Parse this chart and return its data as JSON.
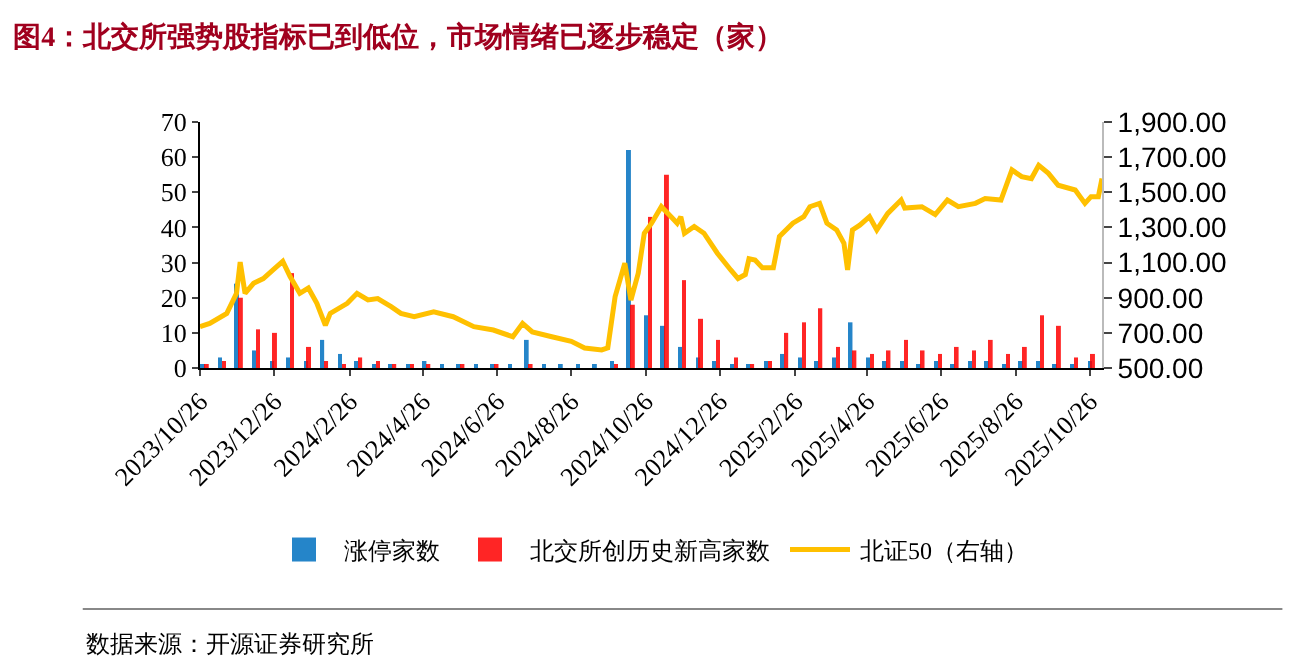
{
  "chart_data": {
    "type": "bar",
    "title": "图4：北交所强势股指标已到低位，市场情绪已逐步稳定（家）",
    "x": [
      "2023-10-27",
      "2023-11-10",
      "2023-11-24",
      "2023-12-08",
      "2023-12-22",
      "2024-01-05",
      "2024-01-19",
      "2024-02-02",
      "2024-02-16",
      "2024-03-01",
      "2024-03-15",
      "2024-03-29",
      "2024-04-12",
      "2024-04-26",
      "2024-05-10",
      "2024-05-24",
      "2024-06-07",
      "2024-06-21",
      "2024-07-05",
      "2024-07-19",
      "2024-08-02",
      "2024-08-16",
      "2024-08-30",
      "2024-09-13",
      "2024-09-27",
      "2024-10-11",
      "2024-10-25",
      "2024-11-08",
      "2024-11-22",
      "2024-12-06",
      "2024-12-20",
      "2025-01-03",
      "2025-01-17",
      "2025-01-31",
      "2025-02-14",
      "2025-02-28",
      "2025-03-14",
      "2025-03-28",
      "2025-04-11",
      "2025-04-25",
      "2025-05-09",
      "2025-05-23",
      "2025-06-06",
      "2025-06-20",
      "2025-07-04",
      "2025-07-18",
      "2025-08-01",
      "2025-08-15",
      "2025-08-29",
      "2025-09-12",
      "2025-09-26",
      "2025-10-10",
      "2025-10-24"
    ],
    "series": [
      {
        "name": "涨停家数",
        "color": "#0070c0",
        "values": [
          1,
          3,
          24,
          5,
          2,
          3,
          2,
          8,
          4,
          2,
          1,
          1,
          1,
          2,
          1,
          1,
          1,
          1,
          1,
          8,
          1,
          1,
          1,
          1,
          2,
          62,
          15,
          12,
          6,
          3,
          2,
          1,
          1,
          2,
          4,
          3,
          2,
          3,
          13,
          3,
          2,
          2,
          1,
          2,
          1,
          2,
          2,
          1,
          2,
          2,
          1,
          1,
          2
        ]
      },
      {
        "name": "北交所创历史新高家数",
        "color": "#ff0000",
        "values": [
          1,
          2,
          20,
          11,
          10,
          27,
          6,
          2,
          1,
          3,
          2,
          1,
          1,
          1,
          0,
          1,
          0,
          1,
          0,
          1,
          0,
          0,
          0,
          0,
          1,
          18,
          43,
          55,
          25,
          14,
          8,
          3,
          1,
          2,
          10,
          13,
          17,
          6,
          5,
          4,
          5,
          8,
          5,
          4,
          6,
          5,
          8,
          4,
          6,
          15,
          12,
          3,
          4
        ]
      },
      {
        "name": "北证50（右轴）",
        "type": "line",
        "axis": "y2",
        "color": "#ffc000",
        "x": [
          "2023-10-26",
          "2023-11-03",
          "2023-11-17",
          "2023-11-25",
          "2023-11-28",
          "2023-12-02",
          "2023-12-09",
          "2023-12-17",
          "2023-12-25",
          "2024-01-02",
          "2024-01-08",
          "2024-01-16",
          "2024-01-23",
          "2024-01-30",
          "2024-02-06",
          "2024-02-10",
          "2024-02-24",
          "2024-03-03",
          "2024-03-12",
          "2024-03-20",
          "2024-03-31",
          "2024-04-08",
          "2024-04-19",
          "2024-05-05",
          "2024-05-21",
          "2024-06-07",
          "2024-06-23",
          "2024-07-09",
          "2024-07-17",
          "2024-07-25",
          "2024-08-10",
          "2024-08-26",
          "2024-09-06",
          "2024-09-20",
          "2024-09-25",
          "2024-10-01",
          "2024-10-09",
          "2024-10-14",
          "2024-10-20",
          "2024-10-25",
          "2024-10-31",
          "2024-11-08",
          "2024-11-16",
          "2024-11-21",
          "2024-11-24",
          "2024-11-27",
          "2024-12-05",
          "2024-12-13",
          "2024-12-24",
          "2025-01-04",
          "2025-01-10",
          "2025-01-16",
          "2025-01-19",
          "2025-01-24",
          "2025-01-30",
          "2025-02-08",
          "2025-02-13",
          "2025-02-24",
          "2025-03-05",
          "2025-03-10",
          "2025-03-18",
          "2025-03-24",
          "2025-04-01",
          "2025-04-07",
          "2025-04-10",
          "2025-04-14",
          "2025-04-20",
          "2025-04-28",
          "2025-05-04",
          "2025-05-13",
          "2025-05-24",
          "2025-05-27",
          "2025-06-10",
          "2025-06-21",
          "2025-07-01",
          "2025-07-10",
          "2025-07-24",
          "2025-08-01",
          "2025-08-14",
          "2025-08-23",
          "2025-08-31",
          "2025-09-08",
          "2025-09-14",
          "2025-09-22",
          "2025-09-30",
          "2025-10-14",
          "2025-10-22",
          "2025-10-27",
          "2025-11-02",
          "2025-11-05"
        ],
        "values": [
          735,
          754,
          811,
          925,
          1103,
          925,
          982,
          1009,
          1058,
          1107,
          1020,
          925,
          955,
          868,
          743,
          811,
          868,
          925,
          887,
          895,
          849,
          811,
          792,
          819,
          792,
          735,
          716,
          678,
          754,
          705,
          678,
          652,
          614,
          603,
          614,
          906,
          1096,
          887,
          1039,
          1267,
          1324,
          1418,
          1361,
          1324,
          1361,
          1267,
          1305,
          1267,
          1153,
          1058,
          1009,
          1032,
          1122,
          1115,
          1070,
          1070,
          1248,
          1324,
          1361,
          1418,
          1437,
          1324,
          1286,
          1210,
          1058,
          1286,
          1313,
          1361,
          1286,
          1380,
          1456,
          1410,
          1418,
          1373,
          1456,
          1418,
          1437,
          1464,
          1456,
          1627,
          1589,
          1578,
          1653,
          1608,
          1540,
          1513,
          1437,
          1475,
          1475,
          1578
        ]
      }
    ],
    "xlim": [
      "2023-10-26",
      "2025-11-05"
    ],
    "xticks": [
      {
        "value": "2023-10-26",
        "label": "2023/10/26"
      },
      {
        "value": "2023-12-26",
        "label": "2023/12/26"
      },
      {
        "value": "2024-02-26",
        "label": "2024/2/26"
      },
      {
        "value": "2024-04-26",
        "label": "2024/4/26"
      },
      {
        "value": "2024-06-26",
        "label": "2024/6/26"
      },
      {
        "value": "2024-08-26",
        "label": "2024/8/26"
      },
      {
        "value": "2024-10-26",
        "label": "2024/10/26"
      },
      {
        "value": "2024-12-26",
        "label": "2024/12/26"
      },
      {
        "value": "2025-02-26",
        "label": "2025/2/26"
      },
      {
        "value": "2025-04-26",
        "label": "2025/4/26"
      },
      {
        "value": "2025-06-26",
        "label": "2025/6/26"
      },
      {
        "value": "2025-08-26",
        "label": "2025/8/26"
      },
      {
        "value": "2025-10-26",
        "label": "2025/10/26"
      }
    ],
    "ylim": [
      0,
      70
    ],
    "yticks": [
      0,
      10,
      20,
      30,
      40,
      50,
      60,
      70
    ],
    "y2lim": [
      500,
      1900
    ],
    "y2ticks": [
      {
        "value": 500,
        "label": "500.00"
      },
      {
        "value": 700,
        "label": "700.00"
      },
      {
        "value": 900,
        "label": "900.00"
      },
      {
        "value": 1100,
        "label": "1,100.00"
      },
      {
        "value": 1300,
        "label": "1,300.00"
      },
      {
        "value": 1500,
        "label": "1,500.00"
      },
      {
        "value": 1700,
        "label": "1,700.00"
      },
      {
        "value": 1900,
        "label": "1,900.00"
      }
    ],
    "legend": "bottom",
    "annotations": [
      "数据来源：开源证券研究所"
    ]
  }
}
